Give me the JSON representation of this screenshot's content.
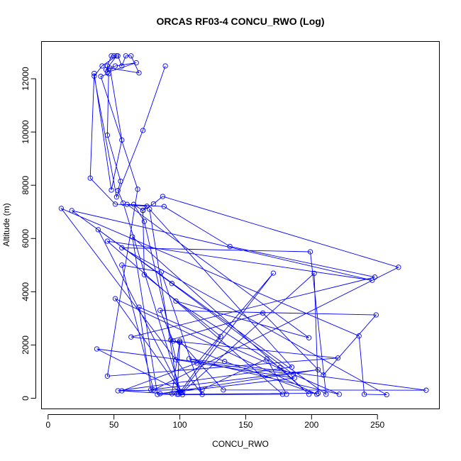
{
  "chart_data": {
    "type": "line",
    "title": "ORCAS RF03-4 CONCU_RWO (Log)",
    "xlabel": "CONCU_RWO",
    "ylabel": "Altitude (m)",
    "xlim": [
      -5,
      297
    ],
    "ylim": [
      -400,
      13400
    ],
    "xticks": [
      0,
      50,
      100,
      150,
      200,
      250
    ],
    "yticks": [
      0,
      2000,
      4000,
      6000,
      8000,
      10000,
      12000
    ],
    "grid": false,
    "markers": "open-circle",
    "series": [
      {
        "color": "#0000ff",
        "points": [
          [
            89,
            12480
          ],
          [
            72,
            10060
          ],
          [
            52,
            7560
          ],
          [
            35,
            12100
          ],
          [
            41,
            12480
          ],
          [
            52,
            12860
          ],
          [
            44,
            12340
          ],
          [
            51,
            12480
          ],
          [
            67,
            12600
          ],
          [
            45,
            12240
          ],
          [
            45,
            12480
          ],
          [
            48,
            12860
          ],
          [
            50,
            12860
          ],
          [
            53,
            12860
          ],
          [
            56,
            12480
          ],
          [
            59,
            12860
          ],
          [
            63,
            12860
          ],
          [
            69,
            12220
          ],
          [
            47,
            12400
          ],
          [
            56,
            9700
          ],
          [
            48,
            7820
          ],
          [
            35,
            12200
          ],
          [
            32,
            8270
          ],
          [
            51,
            7290
          ],
          [
            75,
            7210
          ],
          [
            72,
            7060
          ],
          [
            80,
            7300
          ],
          [
            87,
            7580
          ],
          [
            266,
            4920
          ],
          [
            80,
            310
          ],
          [
            56,
            5000
          ],
          [
            86,
            4740
          ],
          [
            117,
            140
          ],
          [
            10,
            7130
          ],
          [
            236,
            2340
          ],
          [
            240,
            150
          ],
          [
            257,
            130
          ],
          [
            56,
            5650
          ],
          [
            199,
            5500
          ],
          [
            211,
            145
          ],
          [
            18,
            7050
          ],
          [
            246,
            4430
          ],
          [
            45,
            5900
          ],
          [
            178,
            150
          ],
          [
            102,
            130
          ],
          [
            56,
            280
          ],
          [
            113,
            1320
          ],
          [
            171,
            4700
          ],
          [
            101,
            200
          ],
          [
            57,
            7330
          ],
          [
            53,
            7800
          ],
          [
            55,
            8150
          ],
          [
            45,
            9880
          ],
          [
            46,
            12190
          ],
          [
            40,
            12090
          ],
          [
            68,
            7850
          ],
          [
            45,
            830
          ],
          [
            220,
            1510
          ],
          [
            95,
            2150
          ],
          [
            85,
            3300
          ],
          [
            249,
            3130
          ],
          [
            209,
            870
          ],
          [
            163,
            3200
          ],
          [
            93,
            2190
          ],
          [
            134,
            1380
          ],
          [
            204,
            150
          ],
          [
            51,
            3740
          ],
          [
            101,
            250
          ],
          [
            38,
            6330
          ],
          [
            94,
            4310
          ],
          [
            186,
            900
          ],
          [
            37,
            1850
          ],
          [
            102,
            230
          ],
          [
            202,
            4690
          ],
          [
            205,
            190
          ],
          [
            83,
            140
          ],
          [
            64,
            6060
          ],
          [
            198,
            150
          ],
          [
            176,
            1150
          ],
          [
            97,
            3650
          ],
          [
            198,
            2270
          ],
          [
            60,
            7280
          ],
          [
            88,
            7200
          ],
          [
            138,
            5700
          ],
          [
            248,
            4550
          ],
          [
            63,
            2300
          ],
          [
            100,
            2100
          ],
          [
            98,
            150
          ],
          [
            94,
            170
          ],
          [
            100,
            2150
          ],
          [
            133,
            310
          ],
          [
            287,
            300
          ],
          [
            107,
            1480
          ],
          [
            221,
            150
          ],
          [
            69,
            3420
          ],
          [
            78,
            320
          ],
          [
            205,
            1070
          ],
          [
            85,
            170
          ],
          [
            187,
            760
          ],
          [
            97,
            1450
          ],
          [
            73,
            6640
          ],
          [
            65,
            7280
          ],
          [
            72,
            7050
          ],
          [
            73,
            4640
          ],
          [
            131,
            2320
          ],
          [
            99,
            150
          ],
          [
            77,
            7100
          ],
          [
            185,
            1170
          ],
          [
            53,
            280
          ],
          [
            117,
            330
          ],
          [
            166,
            1480
          ],
          [
            181,
            150
          ]
        ]
      }
    ]
  }
}
